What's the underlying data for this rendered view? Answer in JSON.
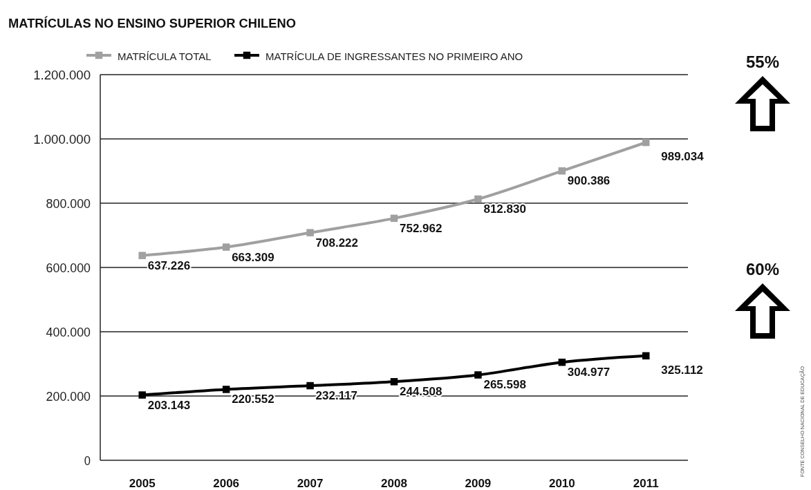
{
  "chart_data": {
    "type": "line",
    "title": "MATRÍCULAS NO ENSINO SUPERIOR CHILENO",
    "categories": [
      "2005",
      "2006",
      "2007",
      "2008",
      "2009",
      "2010",
      "2011"
    ],
    "series": [
      {
        "name": "MATRÍCULA TOTAL",
        "color": "#a0a0a0",
        "values": [
          637226,
          663309,
          708222,
          752962,
          812830,
          900386,
          989034
        ],
        "value_labels": [
          "637.226",
          "663.309",
          "708.222",
          "752.962",
          "812.830",
          "900.386",
          "989.034"
        ]
      },
      {
        "name": "MATRÍCULA DE INGRESSANTES NO PRIMEIRO ANO",
        "color": "#000000",
        "values": [
          203143,
          220552,
          232117,
          244508,
          265598,
          304977,
          325112
        ],
        "value_labels": [
          "203.143",
          "220.552",
          "232.117",
          "244.508",
          "265.598",
          "304.977",
          "325.112"
        ]
      }
    ],
    "ylim": [
      0,
      1200000
    ],
    "yticks": [
      0,
      {
        "value": 200000,
        "label": "200.000"
      },
      {
        "value": 400000,
        "label": "400.000"
      },
      {
        "value": 600000,
        "label": "600.000"
      },
      {
        "value": 800000,
        "label": "800.000"
      },
      {
        "value": 1000000,
        "label": "1.000.000"
      },
      {
        "value": 1200000,
        "label": "1.200.000"
      }
    ],
    "grid": "y",
    "legend": "top left",
    "marker": "square",
    "line_style": "solid",
    "annotations": [
      "55%",
      "60%",
      "FONTE CONSELHO NACIONAL DE EDUCAÇÃO"
    ]
  }
}
